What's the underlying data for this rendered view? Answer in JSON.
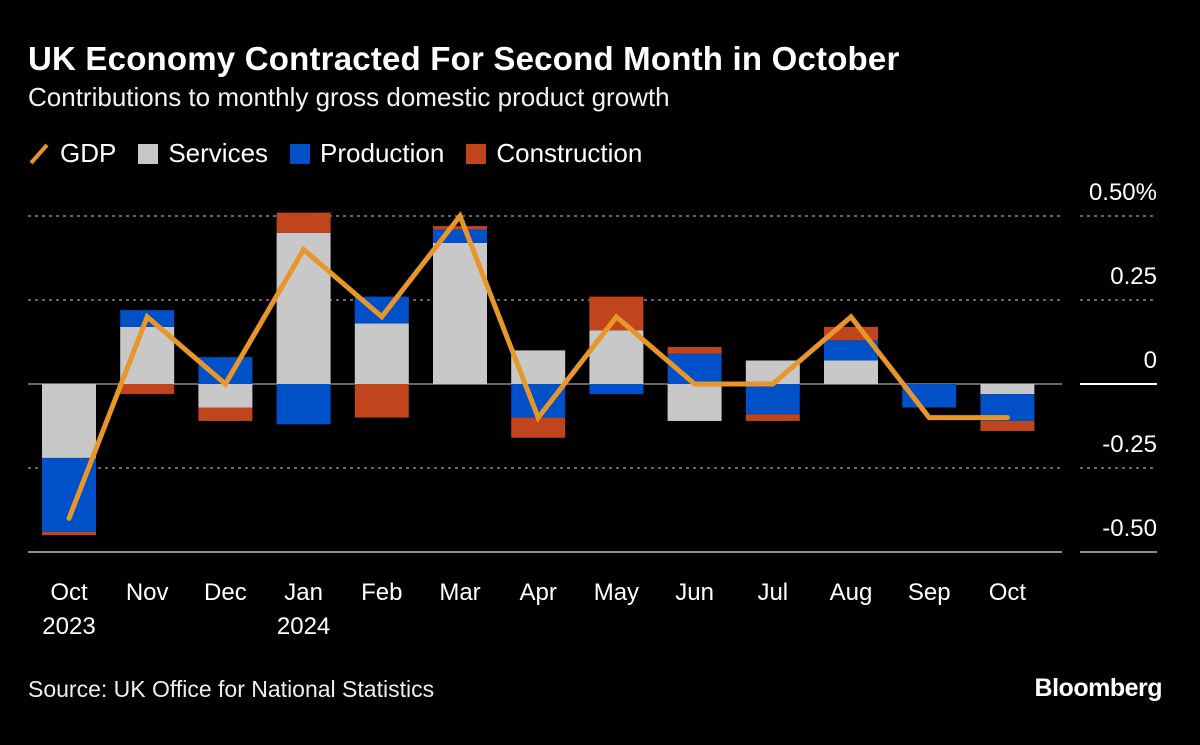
{
  "title": "UK Economy Contracted For Second Month in October",
  "subtitle": "Contributions to monthly gross domestic product growth",
  "source": "Source: UK Office for National Statistics",
  "logo": "Bloomberg",
  "chart_data": {
    "type": "bar",
    "stacked": true,
    "title": "UK Economy Contracted For Second Month in October",
    "subtitle": "Contributions to monthly gross domestic product growth",
    "categories": [
      "Oct\n2023",
      "Nov",
      "Dec",
      "Jan\n2024",
      "Feb",
      "Mar",
      "Apr",
      "May",
      "Jun",
      "Jul",
      "Aug",
      "Sep",
      "Oct"
    ],
    "series": [
      {
        "name": "Services",
        "type": "bar",
        "color": "#c8c8c8",
        "values": [
          -0.22,
          0.17,
          -0.07,
          0.45,
          0.18,
          0.42,
          0.1,
          0.16,
          -0.11,
          0.07,
          0.07,
          0.0,
          -0.03
        ]
      },
      {
        "name": "Production",
        "type": "bar",
        "color": "#0050c8",
        "values": [
          -0.22,
          0.05,
          0.08,
          -0.12,
          0.08,
          0.04,
          -0.1,
          -0.03,
          0.09,
          -0.09,
          0.06,
          -0.07,
          -0.08
        ]
      },
      {
        "name": "Construction",
        "type": "bar",
        "color": "#c0441c",
        "values": [
          -0.01,
          -0.03,
          -0.04,
          0.06,
          -0.1,
          0.01,
          -0.06,
          0.1,
          0.02,
          -0.02,
          0.04,
          0.0,
          -0.03
        ]
      },
      {
        "name": "GDP",
        "type": "line",
        "color": "#e8962a",
        "values": [
          -0.4,
          0.2,
          0.0,
          0.4,
          0.2,
          0.5,
          -0.1,
          0.2,
          0.0,
          0.0,
          0.2,
          -0.1,
          -0.1
        ]
      }
    ],
    "legend_order": [
      "GDP",
      "Services",
      "Production",
      "Construction"
    ],
    "legend_position": "top-left",
    "yticks": [
      0.5,
      0.25,
      0,
      -0.25,
      -0.5
    ],
    "ytick_labels": [
      "0.50%",
      "0.25",
      "0",
      "-0.25",
      "-0.50"
    ],
    "ylim": [
      -0.5,
      0.5
    ],
    "y_axis_side": "right",
    "grid": true,
    "xlabel": "",
    "ylabel": ""
  }
}
